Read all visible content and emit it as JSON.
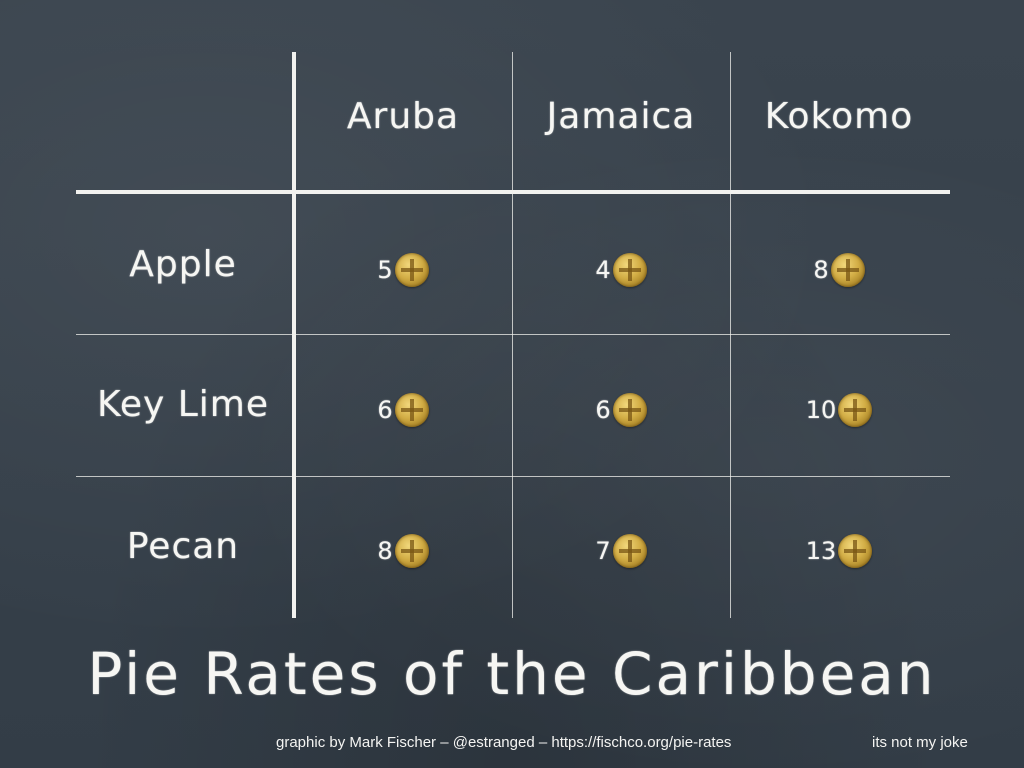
{
  "table": {
    "columns": [
      "Aruba",
      "Jamaica",
      "Kokomo"
    ],
    "rows": [
      {
        "label": "Apple",
        "values": [
          "5",
          "4",
          "8"
        ]
      },
      {
        "label": "Key Lime",
        "values": [
          "6",
          "6",
          "10"
        ]
      },
      {
        "label": "Pecan",
        "values": [
          "8",
          "7",
          "13"
        ]
      }
    ],
    "currency_icon": "gold-coin-icon"
  },
  "title": "Pie Rates of the Caribbean",
  "footer": {
    "credit": "graphic by Mark Fischer – @estranged – https://fischco.org/pie-rates",
    "note": "its not my joke"
  },
  "colors": {
    "background": "#36404a",
    "chalk": "#f6f6f3",
    "coin": "#d2ad45"
  }
}
